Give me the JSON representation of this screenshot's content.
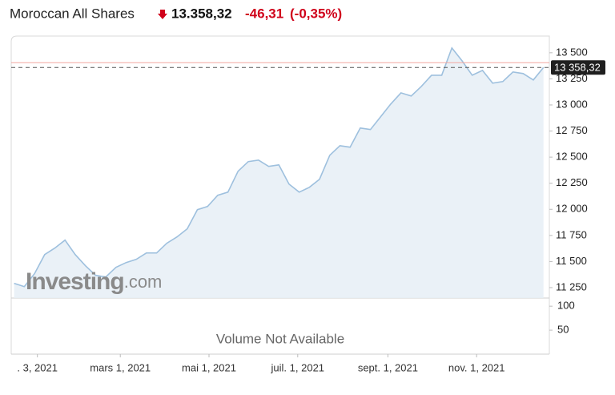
{
  "chart_data": {
    "type": "area",
    "title": "Moroccan All Shares",
    "price": "13.358,32",
    "change": "-46,31",
    "change_pct": "(-0,35%)",
    "color": "#9ec0de",
    "fill": "#e6eef6",
    "x": [
      "2020-12-18",
      "2020-12-25",
      "2021-01-01",
      "2021-01-08",
      "2021-01-15",
      "2021-01-22",
      "2021-01-29",
      "2021-02-05",
      "2021-02-12",
      "2021-02-19",
      "2021-02-26",
      "2021-03-05",
      "2021-03-12",
      "2021-03-19",
      "2021-03-26",
      "2021-04-02",
      "2021-04-09",
      "2021-04-16",
      "2021-04-23",
      "2021-04-30",
      "2021-05-07",
      "2021-05-14",
      "2021-05-21",
      "2021-05-28",
      "2021-06-04",
      "2021-06-11",
      "2021-06-18",
      "2021-06-25",
      "2021-07-02",
      "2021-07-09",
      "2021-07-16",
      "2021-07-23",
      "2021-07-30",
      "2021-08-06",
      "2021-08-13",
      "2021-08-20",
      "2021-08-27",
      "2021-09-03",
      "2021-09-10",
      "2021-09-17",
      "2021-09-24",
      "2021-10-01",
      "2021-10-08",
      "2021-10-15",
      "2021-10-22",
      "2021-10-29",
      "2021-11-05",
      "2021-11-12",
      "2021-11-19",
      "2021-11-26",
      "2021-12-03",
      "2021-12-10",
      "2021-12-17"
    ],
    "values": [
      11291,
      11260,
      11383,
      11567,
      11629,
      11705,
      11567,
      11460,
      11368,
      11352,
      11444,
      11490,
      11521,
      11582,
      11582,
      11675,
      11736,
      11813,
      11997,
      12027,
      12135,
      12165,
      12365,
      12457,
      12472,
      12411,
      12426,
      12242,
      12165,
      12211,
      12288,
      12518,
      12610,
      12595,
      12779,
      12764,
      12886,
      13009,
      13116,
      13086,
      13178,
      13285,
      13285,
      13546,
      13423,
      13285,
      13331,
      13209,
      13224,
      13316,
      13301,
      13239,
      13358.32
    ],
    "last_label": "13 358,32",
    "previous_close": 13404.63,
    "xlim": [
      "2020-12-16",
      "2021-12-21"
    ],
    "xticks": [
      {
        "value": "2021-01-03",
        "label": ". 3, 2021"
      },
      {
        "value": "2021-03-01",
        "label": "mars 1, 2021"
      },
      {
        "value": "2021-05-01",
        "label": "mai 1, 2021"
      },
      {
        "value": "2021-07-01",
        "label": "juil. 1, 2021"
      },
      {
        "value": "2021-09-01",
        "label": "sept. 1, 2021"
      },
      {
        "value": "2021-11-01",
        "label": "nov. 1, 2021"
      }
    ],
    "ylim": [
      11150,
      13660
    ],
    "yticks": [
      {
        "value": 11250,
        "label": "11 250"
      },
      {
        "value": 11500,
        "label": "11 500"
      },
      {
        "value": 11750,
        "label": "11 750"
      },
      {
        "value": 12000,
        "label": "12 000"
      },
      {
        "value": 12250,
        "label": "12 250"
      },
      {
        "value": 12500,
        "label": "12 500"
      },
      {
        "value": 12750,
        "label": "12 750"
      },
      {
        "value": 13000,
        "label": "13 000"
      },
      {
        "value": 13250,
        "label": "13 250"
      },
      {
        "value": 13500,
        "label": "13 500"
      }
    ],
    "volume": {
      "text": "Volume Not Available",
      "ylim": [
        0,
        117
      ],
      "yticks": [
        50,
        100
      ]
    },
    "watermark": {
      "brand": "Investing",
      "suffix": ".com"
    },
    "grid": false
  }
}
